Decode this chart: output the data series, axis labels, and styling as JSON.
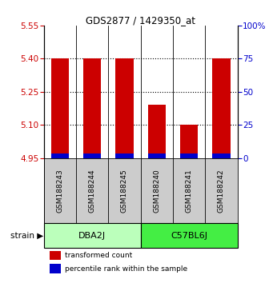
{
  "title": "GDS2877 / 1429350_at",
  "samples": [
    "GSM188243",
    "GSM188244",
    "GSM188245",
    "GSM188240",
    "GSM188241",
    "GSM188242"
  ],
  "groups": [
    {
      "name": "DBA2J",
      "indices": [
        0,
        1,
        2
      ],
      "color": "#bbffbb"
    },
    {
      "name": "C57BL6J",
      "indices": [
        3,
        4,
        5
      ],
      "color": "#44ee44"
    }
  ],
  "red_values": [
    5.4,
    5.4,
    5.4,
    5.19,
    5.1,
    5.4
  ],
  "blue_values": [
    4.97,
    4.97,
    4.97,
    4.97,
    4.97,
    4.97
  ],
  "base_value": 4.95,
  "ylim": [
    4.95,
    5.55
  ],
  "yticks": [
    4.95,
    5.1,
    5.25,
    5.4,
    5.55
  ],
  "right_ytick_vals": [
    0,
    25,
    50,
    75,
    100
  ],
  "right_ytick_labels": [
    "0",
    "25",
    "50",
    "75",
    "100%"
  ],
  "bar_width": 0.55,
  "red_color": "#cc0000",
  "blue_color": "#0000cc",
  "group_label": "strain",
  "legend_red": "transformed count",
  "legend_blue": "percentile rank within the sample",
  "bg_color": "#ffffff",
  "sample_bg": "#cccccc",
  "grid_dotted_at": [
    5.1,
    5.25,
    5.4
  ]
}
